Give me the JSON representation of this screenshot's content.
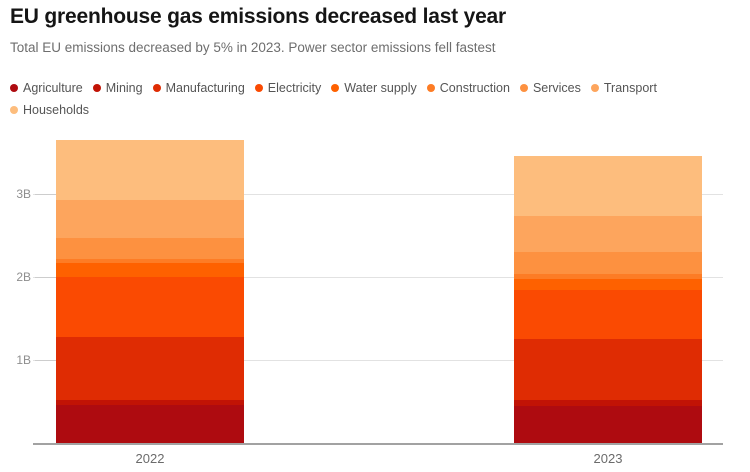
{
  "header": {
    "title": "EU greenhouse gas emissions decreased last year",
    "subtitle": "Total EU emissions decreased by 5% in 2023. Power sector emissions fell fastest"
  },
  "chart_data": {
    "type": "bar",
    "stacked": true,
    "title": "EU greenhouse gas emissions decreased last year",
    "subtitle": "Total EU emissions decreased by 5% in 2023. Power sector emissions fell fastest",
    "categories": [
      "2022",
      "2023"
    ],
    "series": [
      {
        "name": "Agriculture",
        "color": "#ae0b10",
        "values": [
          0.46,
          0.45
        ]
      },
      {
        "name": "Mining",
        "color": "#c11305",
        "values": [
          0.06,
          0.065
        ]
      },
      {
        "name": "Manufacturing",
        "color": "#df2c03",
        "values": [
          0.76,
          0.74
        ]
      },
      {
        "name": "Electricity",
        "color": "#fa4a02",
        "values": [
          0.72,
          0.59
        ]
      },
      {
        "name": "Water supply",
        "color": "#fe6100",
        "values": [
          0.17,
          0.13
        ]
      },
      {
        "name": "Construction",
        "color": "#fd7c25",
        "values": [
          0.05,
          0.06
        ]
      },
      {
        "name": "Services",
        "color": "#fd9140",
        "values": [
          0.25,
          0.27
        ]
      },
      {
        "name": "Transport",
        "color": "#fda55d",
        "values": [
          0.46,
          0.43
        ]
      },
      {
        "name": "Households",
        "color": "#fdbd7d",
        "values": [
          0.72,
          0.72
        ]
      }
    ],
    "totals": [
      3.65,
      3.46
    ],
    "xlabel": "",
    "ylabel": "",
    "ylim": [
      0,
      3.8
    ],
    "yticks": [
      {
        "value": 1,
        "label": "1B"
      },
      {
        "value": 2,
        "label": "2B"
      },
      {
        "value": 3,
        "label": "3B"
      }
    ],
    "grid": true,
    "legend_position": "top"
  }
}
